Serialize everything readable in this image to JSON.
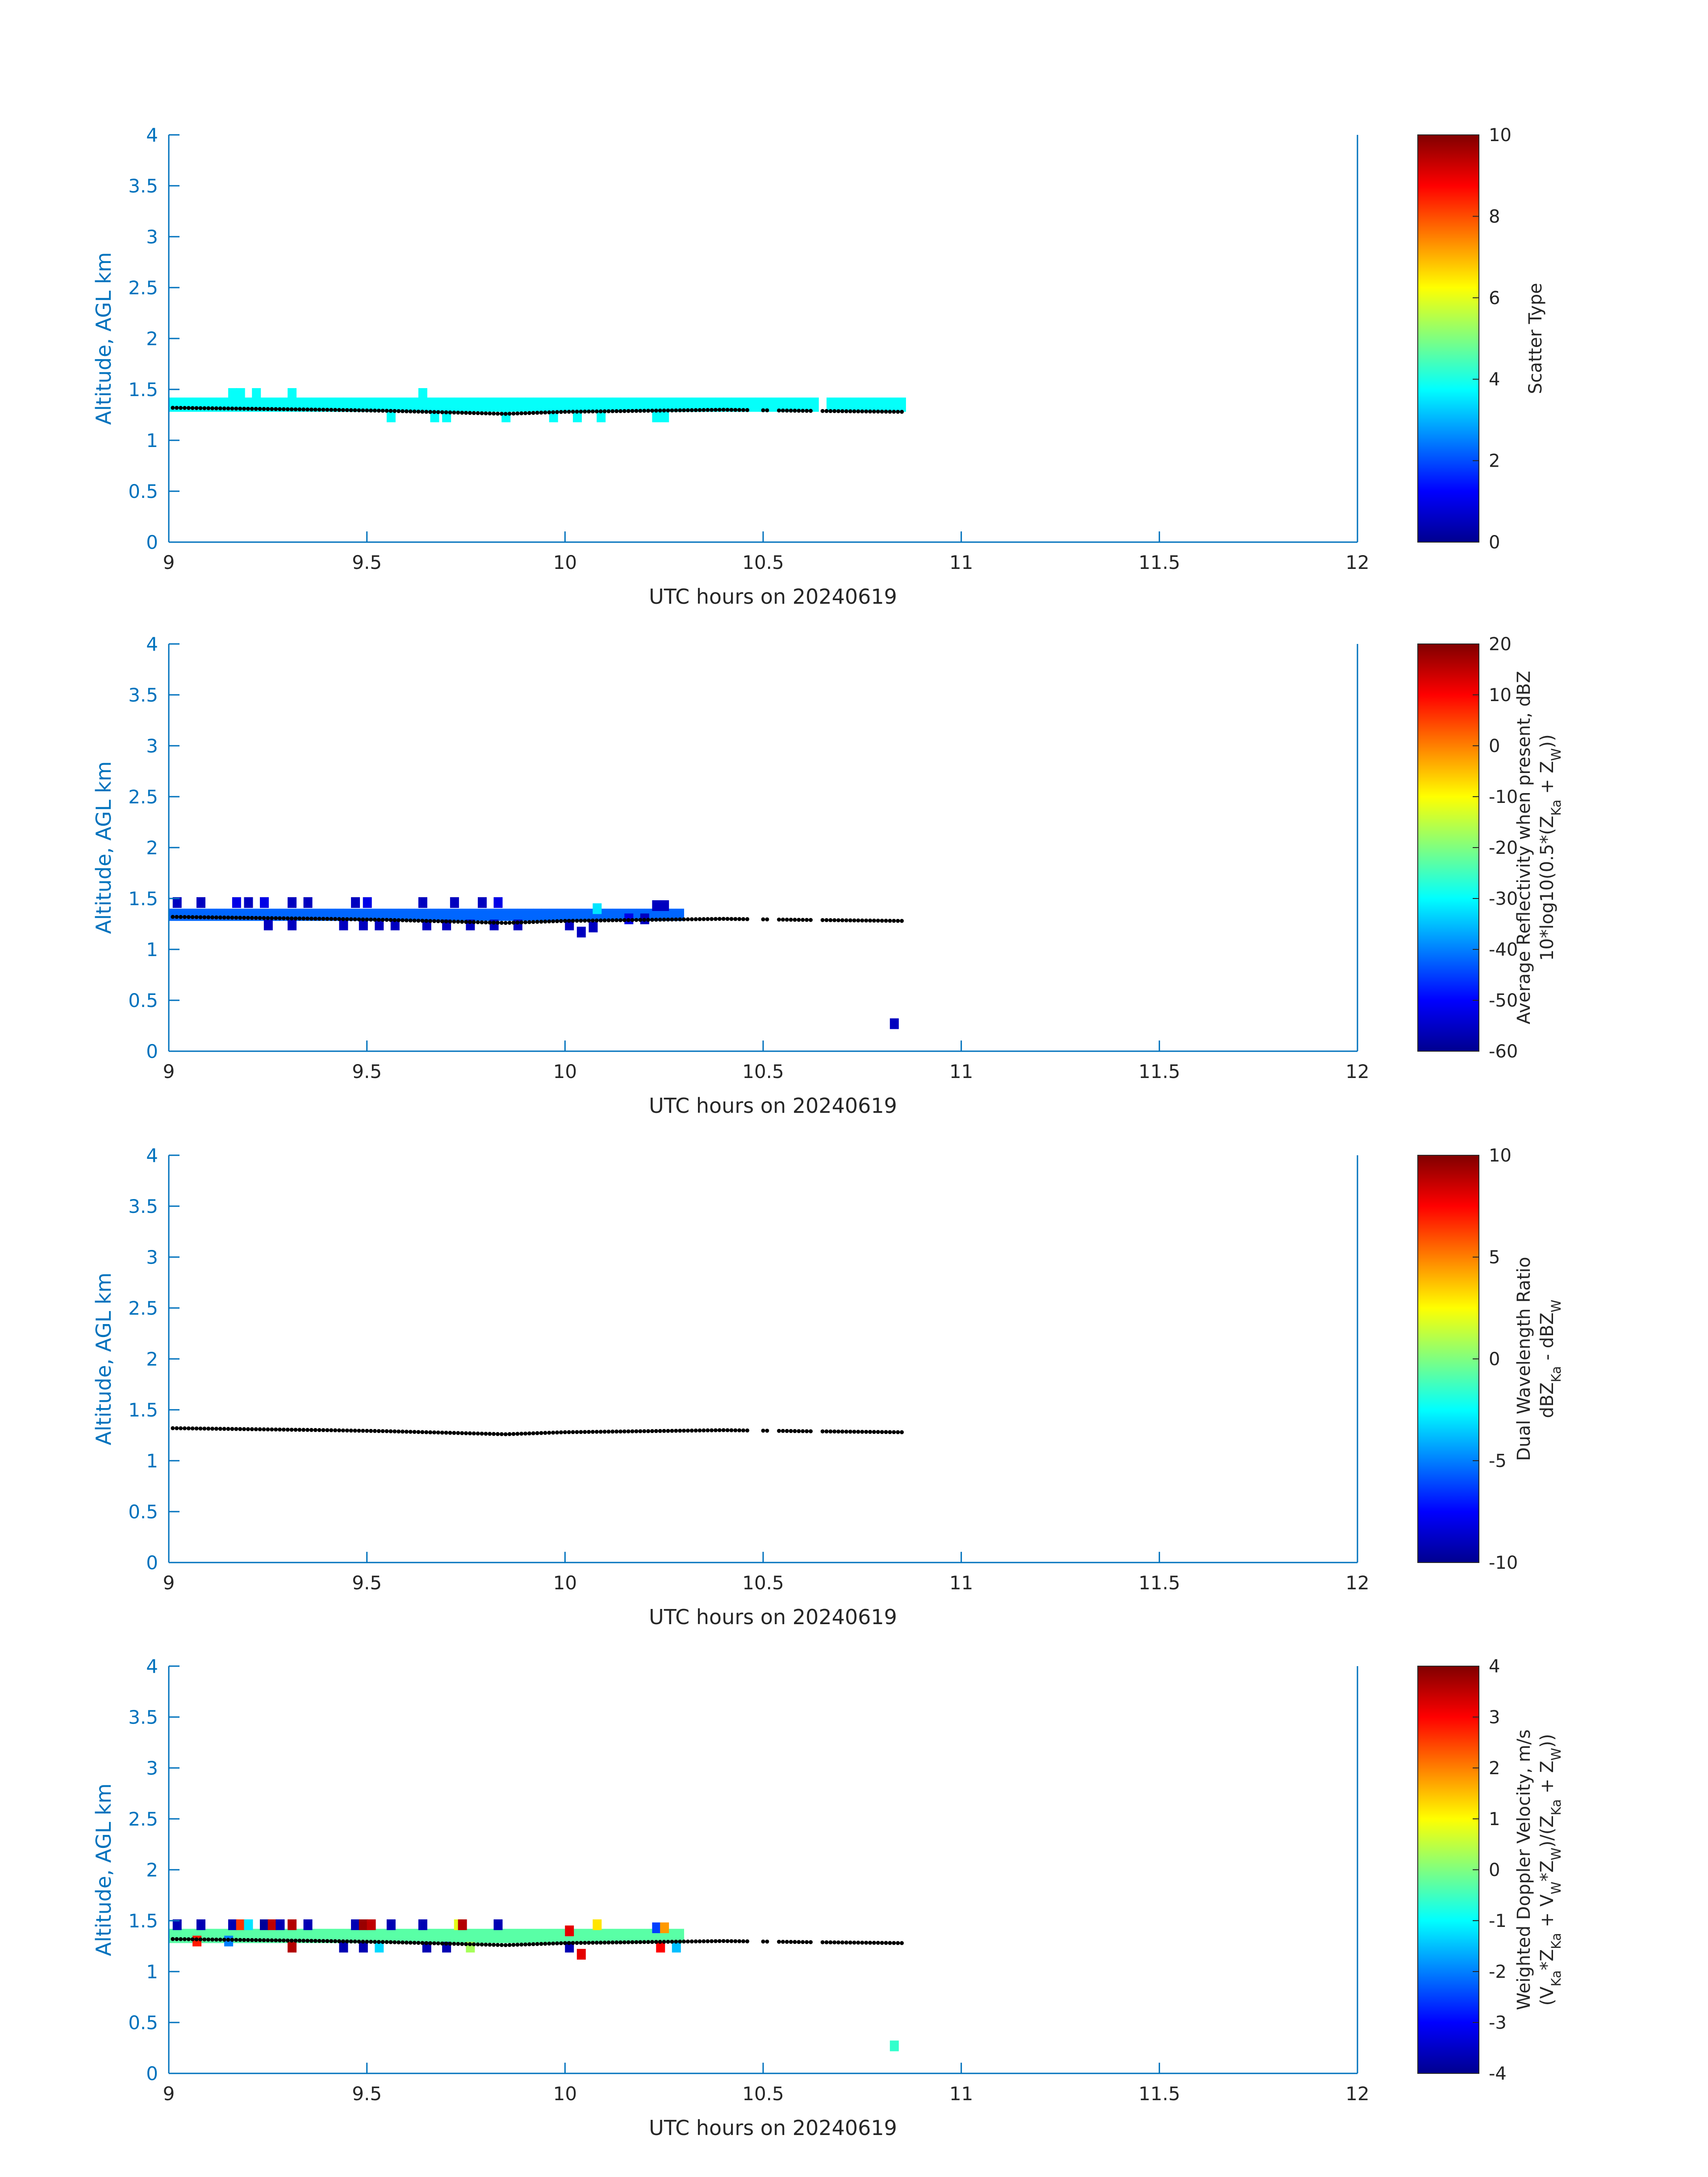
{
  "colors": {
    "axis": "#0072BD",
    "text": "#262626",
    "cloud_base": "#000000"
  },
  "chart_data": [
    {
      "type": "heatmap",
      "title": "",
      "xlabel": "UTC hours on 20240619",
      "ylabel": "Altitude, AGL km",
      "xlim": [
        9,
        12
      ],
      "ylim": [
        0,
        4
      ],
      "x_tick_labels": [
        "9",
        "9.5",
        "10",
        "10.5",
        "11",
        "11.5",
        "12"
      ],
      "y_tick_labels": [
        "0",
        "0.5",
        "1",
        "1.5",
        "2",
        "2.5",
        "3",
        "3.5",
        "4"
      ],
      "grid": false,
      "colormap": "jet",
      "colorbar": {
        "label_lines": [
          "Scatter Type"
        ],
        "clim": [
          0,
          10
        ],
        "tick_labels": [
          "0",
          "2",
          "4",
          "6",
          "8",
          "10"
        ]
      },
      "radar_layer": {
        "x_range": [
          9.0,
          10.85
        ],
        "gaps": [
          [
            10.48,
            10.49
          ],
          [
            10.52,
            10.53
          ],
          [
            10.63,
            10.64
          ]
        ],
        "y_bottom": 1.28,
        "y_top": 1.42,
        "value": 3.8
      },
      "speckle": [
        {
          "x": 9.16,
          "y": 1.46,
          "v": 3.8
        },
        {
          "x": 9.18,
          "y": 1.46,
          "v": 3.8
        },
        {
          "x": 9.22,
          "y": 1.46,
          "v": 3.8
        },
        {
          "x": 9.31,
          "y": 1.46,
          "v": 3.8
        },
        {
          "x": 9.64,
          "y": 1.46,
          "v": 3.8
        },
        {
          "x": 9.56,
          "y": 1.23,
          "v": 3.8
        },
        {
          "x": 9.67,
          "y": 1.23,
          "v": 3.8
        },
        {
          "x": 9.7,
          "y": 1.23,
          "v": 3.8
        },
        {
          "x": 9.85,
          "y": 1.23,
          "v": 3.8
        },
        {
          "x": 9.97,
          "y": 1.23,
          "v": 3.8
        },
        {
          "x": 10.03,
          "y": 1.23,
          "v": 3.8
        },
        {
          "x": 10.09,
          "y": 1.23,
          "v": 3.8
        },
        {
          "x": 10.23,
          "y": 1.23,
          "v": 3.8
        },
        {
          "x": 10.25,
          "y": 1.23,
          "v": 3.8
        }
      ]
    },
    {
      "type": "heatmap",
      "title": "",
      "xlabel": "UTC hours on 20240619",
      "ylabel": "Altitude, AGL km",
      "xlim": [
        9,
        12
      ],
      "ylim": [
        0,
        4
      ],
      "x_tick_labels": [
        "9",
        "9.5",
        "10",
        "10.5",
        "11",
        "11.5",
        "12"
      ],
      "y_tick_labels": [
        "0",
        "0.5",
        "1",
        "1.5",
        "2",
        "2.5",
        "3",
        "3.5",
        "4"
      ],
      "grid": false,
      "colormap": "jet",
      "colorbar": {
        "label_lines": [
          "Average Reflectivity when present, dBZ",
          "10*log10(0.5*(Z_Ka + Z_W))"
        ],
        "clim": [
          -60,
          20
        ],
        "tick_labels": [
          "-60",
          "-50",
          "-40",
          "-30",
          "-20",
          "-10",
          "0",
          "10",
          "20"
        ]
      },
      "radar_layer": {
        "x_range": [
          9.0,
          10.3
        ],
        "gaps": [],
        "y_bottom": 1.28,
        "y_top": 1.4,
        "value": -42
      },
      "speckle": [
        {
          "x": 9.02,
          "y": 1.46,
          "v": -55
        },
        {
          "x": 9.08,
          "y": 1.46,
          "v": -55
        },
        {
          "x": 9.17,
          "y": 1.46,
          "v": -52
        },
        {
          "x": 9.2,
          "y": 1.46,
          "v": -55
        },
        {
          "x": 9.24,
          "y": 1.46,
          "v": -52
        },
        {
          "x": 9.31,
          "y": 1.46,
          "v": -55
        },
        {
          "x": 9.35,
          "y": 1.46,
          "v": -55
        },
        {
          "x": 9.47,
          "y": 1.46,
          "v": -55
        },
        {
          "x": 9.5,
          "y": 1.46,
          "v": -52
        },
        {
          "x": 9.64,
          "y": 1.46,
          "v": -55
        },
        {
          "x": 9.72,
          "y": 1.46,
          "v": -55
        },
        {
          "x": 9.79,
          "y": 1.46,
          "v": -55
        },
        {
          "x": 9.83,
          "y": 1.46,
          "v": -52
        },
        {
          "x": 10.08,
          "y": 1.4,
          "v": -32
        },
        {
          "x": 10.23,
          "y": 1.43,
          "v": -55
        },
        {
          "x": 10.25,
          "y": 1.43,
          "v": -55
        },
        {
          "x": 9.25,
          "y": 1.24,
          "v": -55
        },
        {
          "x": 9.31,
          "y": 1.24,
          "v": -55
        },
        {
          "x": 9.44,
          "y": 1.24,
          "v": -55
        },
        {
          "x": 9.49,
          "y": 1.24,
          "v": -55
        },
        {
          "x": 9.53,
          "y": 1.24,
          "v": -55
        },
        {
          "x": 9.57,
          "y": 1.24,
          "v": -55
        },
        {
          "x": 9.65,
          "y": 1.24,
          "v": -55
        },
        {
          "x": 9.7,
          "y": 1.24,
          "v": -55
        },
        {
          "x": 9.76,
          "y": 1.24,
          "v": -55
        },
        {
          "x": 9.82,
          "y": 1.24,
          "v": -55
        },
        {
          "x": 9.88,
          "y": 1.24,
          "v": -55
        },
        {
          "x": 10.01,
          "y": 1.24,
          "v": -55
        },
        {
          "x": 10.04,
          "y": 1.17,
          "v": -55
        },
        {
          "x": 10.07,
          "y": 1.22,
          "v": -55
        },
        {
          "x": 10.16,
          "y": 1.3,
          "v": -52
        },
        {
          "x": 10.2,
          "y": 1.3,
          "v": -55
        },
        {
          "x": 10.83,
          "y": 0.27,
          "v": -55
        }
      ]
    },
    {
      "type": "heatmap",
      "title": "",
      "xlabel": "UTC hours on 20240619",
      "ylabel": "Altitude, AGL km",
      "xlim": [
        9,
        12
      ],
      "ylim": [
        0,
        4
      ],
      "x_tick_labels": [
        "9",
        "9.5",
        "10",
        "10.5",
        "11",
        "11.5",
        "12"
      ],
      "y_tick_labels": [
        "0",
        "0.5",
        "1",
        "1.5",
        "2",
        "2.5",
        "3",
        "3.5",
        "4"
      ],
      "grid": false,
      "colormap": "jet",
      "colorbar": {
        "label_lines": [
          "Dual Wavelength Ratio",
          "dBZ_Ka - dBZ_W"
        ],
        "clim": [
          -10,
          10
        ],
        "tick_labels": [
          "-10",
          "-5",
          "0",
          "5",
          "10"
        ]
      },
      "radar_layer": null,
      "speckle": []
    },
    {
      "type": "heatmap",
      "title": "",
      "xlabel": "UTC hours on 20240619",
      "ylabel": "Altitude, AGL km",
      "xlim": [
        9,
        12
      ],
      "ylim": [
        0,
        4
      ],
      "x_tick_labels": [
        "9",
        "9.5",
        "10",
        "10.5",
        "11",
        "11.5",
        "12"
      ],
      "y_tick_labels": [
        "0",
        "0.5",
        "1",
        "1.5",
        "2",
        "2.5",
        "3",
        "3.5",
        "4"
      ],
      "grid": false,
      "colormap": "jet",
      "colorbar": {
        "label_lines": [
          "Weighted Doppler Velocity, m/s",
          "(V_Ka*Z_Ka + V_W*Z_W)/(Z_Ka + Z_W))"
        ],
        "clim": [
          -4,
          4
        ],
        "tick_labels": [
          "-4",
          "-3",
          "-2",
          "-1",
          "0",
          "1",
          "2",
          "3",
          "4"
        ]
      },
      "radar_layer": {
        "x_range": [
          9.0,
          10.3
        ],
        "gaps": [],
        "y_bottom": 1.28,
        "y_top": 1.42,
        "value": -0.3
      },
      "speckle": [
        {
          "x": 9.02,
          "y": 1.46,
          "v": -3.6
        },
        {
          "x": 9.08,
          "y": 1.46,
          "v": -3.6
        },
        {
          "x": 9.16,
          "y": 1.46,
          "v": -3.6
        },
        {
          "x": 9.18,
          "y": 1.46,
          "v": 2.6
        },
        {
          "x": 9.2,
          "y": 1.46,
          "v": -1.2
        },
        {
          "x": 9.24,
          "y": 1.46,
          "v": -3.8
        },
        {
          "x": 9.26,
          "y": 1.46,
          "v": 3.5
        },
        {
          "x": 9.28,
          "y": 1.46,
          "v": -3.6
        },
        {
          "x": 9.31,
          "y": 1.46,
          "v": 3.6
        },
        {
          "x": 9.35,
          "y": 1.46,
          "v": -3.6
        },
        {
          "x": 9.47,
          "y": 1.46,
          "v": -3.6
        },
        {
          "x": 9.49,
          "y": 1.46,
          "v": 3.8
        },
        {
          "x": 9.51,
          "y": 1.46,
          "v": 3.5
        },
        {
          "x": 9.56,
          "y": 1.46,
          "v": -3.6
        },
        {
          "x": 9.64,
          "y": 1.46,
          "v": -3.6
        },
        {
          "x": 9.73,
          "y": 1.46,
          "v": 0.8
        },
        {
          "x": 9.74,
          "y": 1.46,
          "v": 3.6
        },
        {
          "x": 9.83,
          "y": 1.46,
          "v": -3.6
        },
        {
          "x": 10.08,
          "y": 1.46,
          "v": 1.2
        },
        {
          "x": 10.23,
          "y": 1.43,
          "v": -2.5
        },
        {
          "x": 10.25,
          "y": 1.43,
          "v": 1.8
        },
        {
          "x": 10.01,
          "y": 1.4,
          "v": 3.2
        },
        {
          "x": 9.07,
          "y": 1.3,
          "v": 2.8
        },
        {
          "x": 9.15,
          "y": 1.3,
          "v": -2.0
        },
        {
          "x": 9.31,
          "y": 1.24,
          "v": 3.6
        },
        {
          "x": 9.44,
          "y": 1.24,
          "v": -3.6
        },
        {
          "x": 9.49,
          "y": 1.24,
          "v": -3.6
        },
        {
          "x": 9.53,
          "y": 1.24,
          "v": -1.3
        },
        {
          "x": 9.65,
          "y": 1.24,
          "v": -3.6
        },
        {
          "x": 9.7,
          "y": 1.24,
          "v": -3.6
        },
        {
          "x": 9.76,
          "y": 1.24,
          "v": 0.3
        },
        {
          "x": 10.01,
          "y": 1.24,
          "v": -3.6
        },
        {
          "x": 10.04,
          "y": 1.17,
          "v": 3.2
        },
        {
          "x": 10.24,
          "y": 1.24,
          "v": 3.0
        },
        {
          "x": 10.28,
          "y": 1.24,
          "v": -1.5
        },
        {
          "x": 10.83,
          "y": 0.27,
          "v": -0.6
        }
      ]
    }
  ],
  "cloud_base_heights": {
    "x_range": [
      9.01,
      10.85
    ],
    "gaps": [
      [
        10.46,
        10.49
      ],
      [
        10.51,
        10.53
      ],
      [
        10.62,
        10.64
      ]
    ],
    "y_mean": 1.29,
    "y_knots": [
      [
        9.0,
        1.32
      ],
      [
        9.2,
        1.31
      ],
      [
        9.4,
        1.3
      ],
      [
        9.55,
        1.29
      ],
      [
        9.75,
        1.27
      ],
      [
        9.85,
        1.26
      ],
      [
        10.0,
        1.28
      ],
      [
        10.2,
        1.29
      ],
      [
        10.4,
        1.3
      ],
      [
        10.6,
        1.29
      ],
      [
        10.85,
        1.28
      ]
    ]
  }
}
